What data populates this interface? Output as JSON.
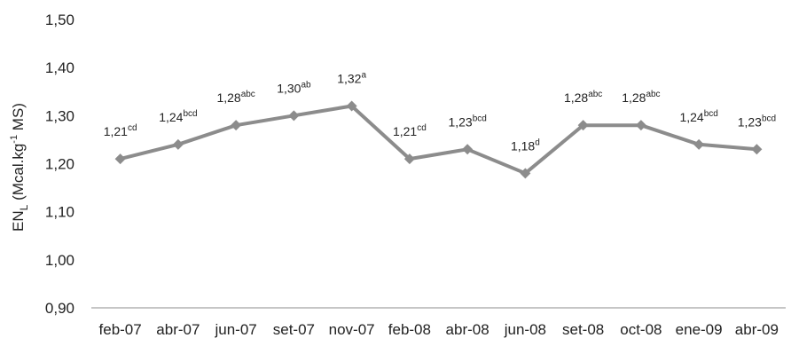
{
  "chart_data": {
    "type": "line",
    "title": "",
    "xlabel": "",
    "ylabel": {
      "base": "EN",
      "sub": "L",
      "rest_before_sup": " (Mcal.kg",
      "sup": "-1",
      "rest_after_sup": " MS)"
    },
    "ylim": [
      0.9,
      1.5
    ],
    "yticks": [
      "0,90",
      "1,00",
      "1,10",
      "1,20",
      "1,30",
      "1,40",
      "1,50"
    ],
    "ytick_values": [
      0.9,
      1.0,
      1.1,
      1.2,
      1.3,
      1.4,
      1.5
    ],
    "grid": false,
    "legend": "none",
    "line_color": "#8c8c8c",
    "marker": "diamond",
    "categories": [
      "feb-07",
      "abr-07",
      "jun-07",
      "set-07",
      "nov-07",
      "feb-08",
      "abr-08",
      "jun-08",
      "set-08",
      "oct-08",
      "ene-09",
      "abr-09"
    ],
    "series": [
      {
        "values": [
          1.21,
          1.24,
          1.28,
          1.3,
          1.32,
          1.21,
          1.23,
          1.18,
          1.28,
          1.28,
          1.24,
          1.23
        ],
        "labels": [
          "1,21",
          "1,24",
          "1,28",
          "1,30",
          "1,32",
          "1,21",
          "1,23",
          "1,18",
          "1,28",
          "1,28",
          "1,24",
          "1,23"
        ],
        "superscripts": [
          "cd",
          "bcd",
          "abc",
          "ab",
          "a",
          "cd",
          "bcd",
          "d",
          "abc",
          "abc",
          "bcd",
          "bcd"
        ]
      }
    ]
  }
}
